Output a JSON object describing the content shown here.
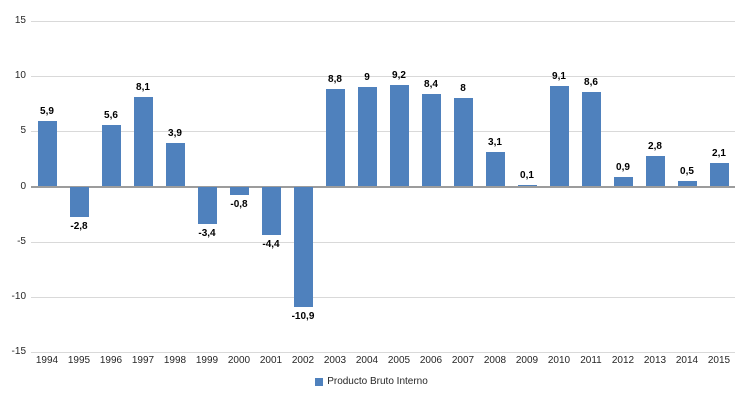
{
  "chart_data": {
    "type": "bar",
    "title": "",
    "categories": [
      "1994",
      "1995",
      "1996",
      "1997",
      "1998",
      "1999",
      "2000",
      "2001",
      "2002",
      "2003",
      "2004",
      "2005",
      "2006",
      "2007",
      "2008",
      "2009",
      "2010",
      "2011",
      "2012",
      "2013",
      "2014",
      "2015"
    ],
    "series": [
      {
        "name": "Producto Bruto Interno",
        "values": [
          5.9,
          -2.8,
          5.6,
          8.1,
          3.9,
          -3.4,
          -0.8,
          -4.4,
          -10.9,
          8.8,
          9,
          9.2,
          8.4,
          8,
          3.1,
          0.1,
          9.1,
          8.6,
          0.9,
          2.8,
          0.5,
          2.1
        ],
        "labels": [
          "5,9",
          "-2,8",
          "5,6",
          "8,1",
          "3,9",
          "-3,4",
          "-0,8",
          "-4,4",
          "-10,9",
          "8,8",
          "9",
          "9,2",
          "8,4",
          "8",
          "3,1",
          "0,1",
          "9,1",
          "8,6",
          "0,9",
          "2,8",
          "0,5",
          "2,1"
        ]
      }
    ],
    "xlabel": "",
    "ylabel": "",
    "ylim": [
      -15,
      15
    ],
    "yticks": [
      15,
      10,
      5,
      0,
      -5,
      -10,
      -15
    ],
    "ytick_labels": [
      "15",
      "10",
      "5",
      "0",
      "-5",
      "-10",
      "-15"
    ],
    "grid": true,
    "legend": {
      "position": "bottom",
      "label": "Producto Bruto Interno"
    },
    "colors": {
      "bar": "#4F81BD",
      "gridline": "#D9D9D9",
      "zero_line": "#9C9C9C",
      "axis_text": "#262626",
      "data_label": "#000000",
      "background": "#FFFFFF"
    }
  }
}
